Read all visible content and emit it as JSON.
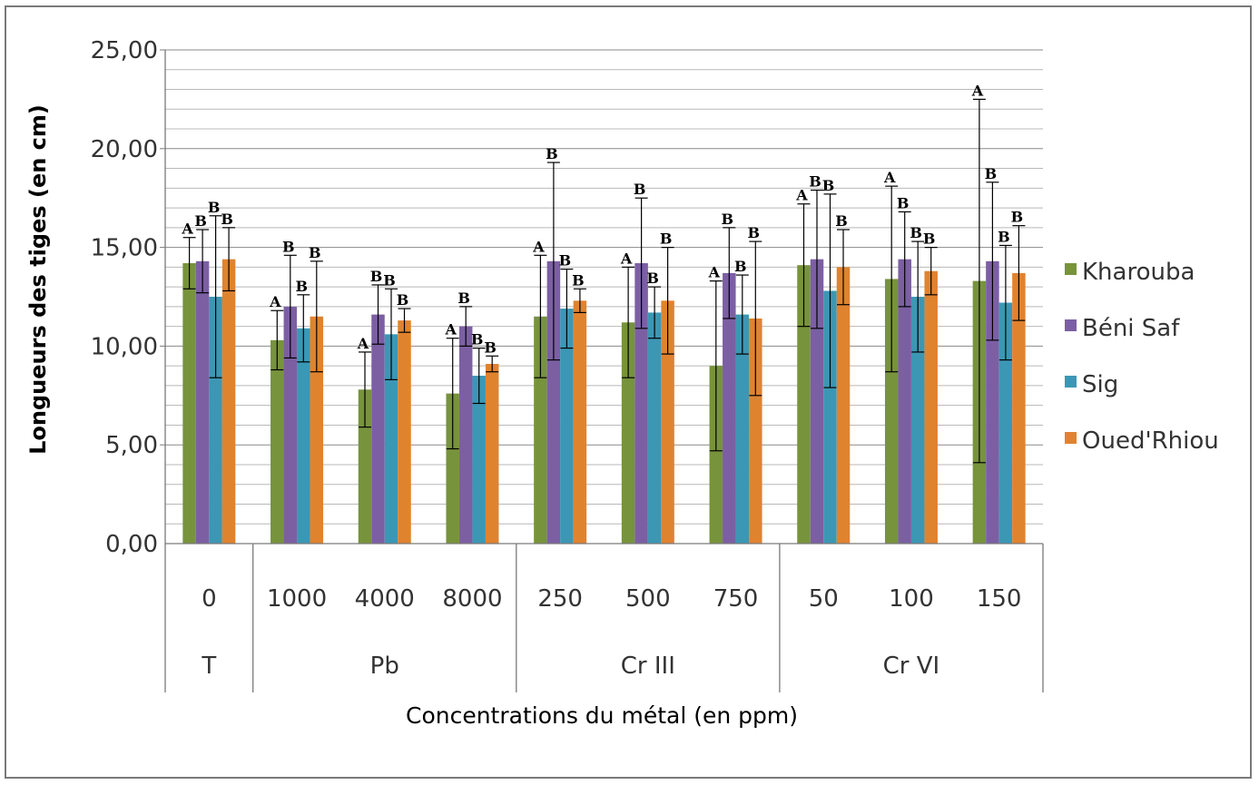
{
  "chart_data": {
    "type": "bar",
    "title": "",
    "xlabel": "Concentrations du métal (en ppm)",
    "ylabel": "Longueurs des tiges (en cm)",
    "ylim": [
      0,
      25
    ],
    "yticks": [
      "0,00",
      "5,00",
      "10,00",
      "15,00",
      "20,00",
      "25,00"
    ],
    "grid": true,
    "legend_position": "right",
    "groups": [
      {
        "label": "T",
        "categories": [
          "0"
        ]
      },
      {
        "label": "Pb",
        "categories": [
          "1000",
          "4000",
          "8000"
        ]
      },
      {
        "label": "Cr III",
        "categories": [
          "250",
          "500",
          "750"
        ]
      },
      {
        "label": "Cr VI",
        "categories": [
          "50",
          "100",
          "150"
        ]
      }
    ],
    "categories": [
      "0",
      "1000",
      "4000",
      "8000",
      "250",
      "500",
      "750",
      "50",
      "100",
      "150"
    ],
    "series": [
      {
        "name": "Kharouba",
        "color": "#77933c",
        "values": [
          14.2,
          10.3,
          7.8,
          7.6,
          11.5,
          11.2,
          9.0,
          14.1,
          13.4,
          13.3
        ],
        "errors": [
          1.3,
          1.5,
          1.9,
          2.8,
          3.1,
          2.8,
          4.3,
          3.1,
          4.7,
          9.2
        ],
        "letters": [
          "A",
          "A",
          "A",
          "A",
          "A",
          "A",
          "A",
          "A",
          "A",
          "A"
        ]
      },
      {
        "name": "Béni Saf",
        "color": "#7c5fa3",
        "values": [
          14.3,
          12.0,
          11.6,
          11.0,
          14.3,
          14.2,
          13.7,
          14.4,
          14.4,
          14.3
        ],
        "errors": [
          1.6,
          2.6,
          1.5,
          1.0,
          5.0,
          3.3,
          2.3,
          3.5,
          2.4,
          4.0
        ],
        "letters": [
          "B",
          "B",
          "B",
          "B",
          "B",
          "B",
          "B",
          "B",
          "B",
          "B"
        ]
      },
      {
        "name": "Sig",
        "color": "#3c97b4",
        "values": [
          12.5,
          10.9,
          10.6,
          8.5,
          11.9,
          11.7,
          11.6,
          12.8,
          12.5,
          12.2
        ],
        "errors": [
          4.1,
          1.7,
          2.3,
          1.4,
          2.0,
          1.3,
          2.0,
          4.9,
          2.8,
          2.9
        ],
        "letters": [
          "B",
          "B",
          "B",
          "B",
          "B",
          "B",
          "B",
          "B",
          "B",
          "B"
        ]
      },
      {
        "name": "Oued'Rhiou",
        "color": "#e0832f",
        "values": [
          14.4,
          11.5,
          11.3,
          9.1,
          12.3,
          12.3,
          11.4,
          14.0,
          13.8,
          13.7
        ],
        "errors": [
          1.6,
          2.8,
          0.6,
          0.4,
          0.6,
          2.7,
          3.9,
          1.9,
          1.2,
          2.4
        ],
        "letters": [
          "B",
          "B",
          "B",
          "B",
          "B",
          "B",
          "B",
          "B",
          "B",
          "B"
        ]
      }
    ]
  }
}
